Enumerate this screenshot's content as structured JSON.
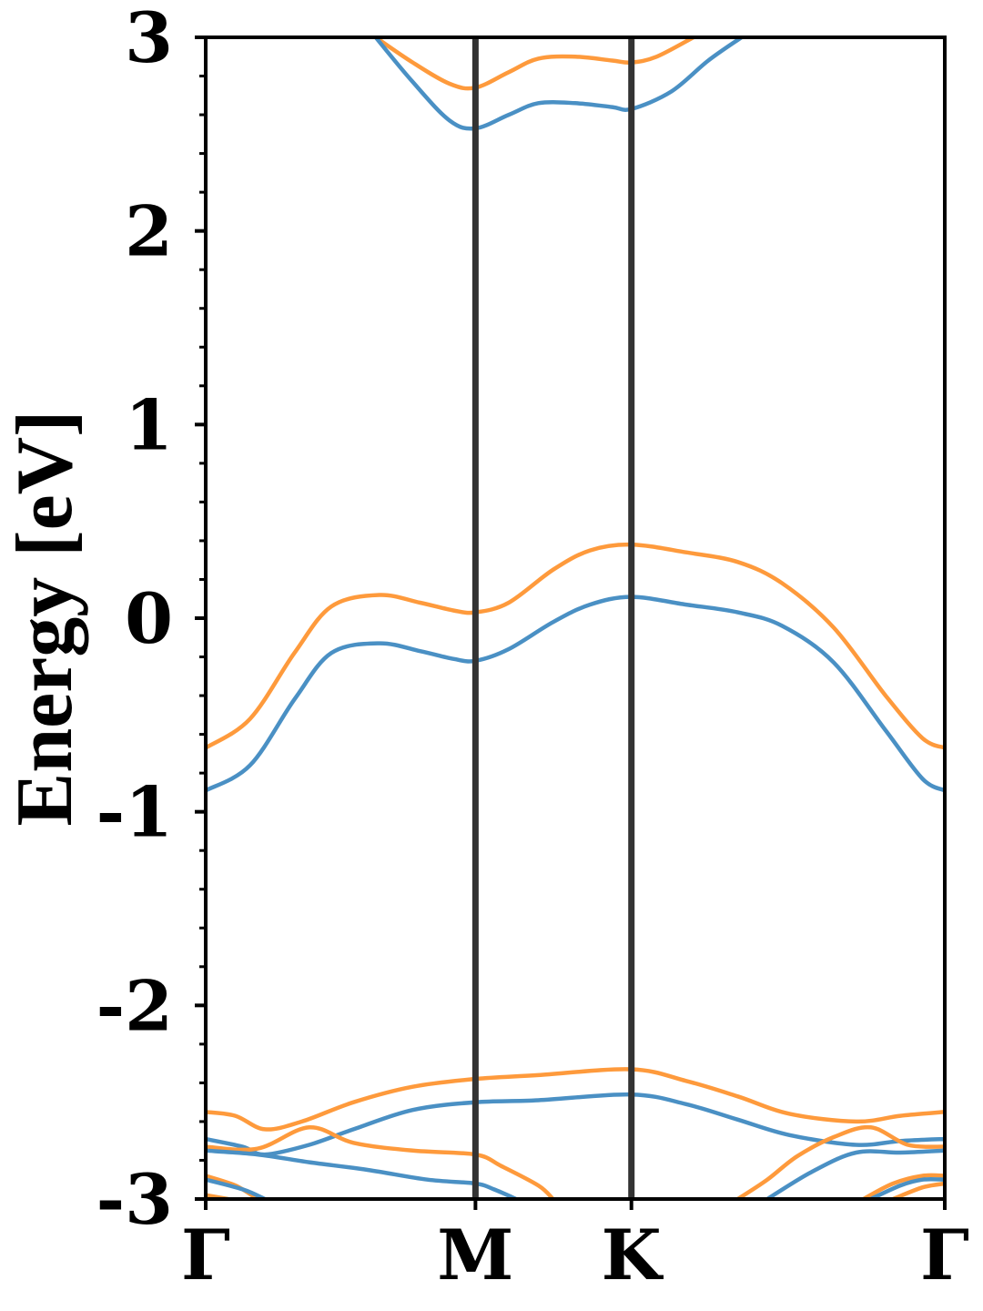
{
  "chart_data": {
    "type": "line",
    "title": "",
    "xlabel": "",
    "ylabel": "Energy [eV]",
    "ylim": [
      -3,
      3
    ],
    "xlim": [
      0,
      1
    ],
    "grid": false,
    "legend": "none",
    "x_ticks": [
      {
        "label": "Γ",
        "value": 0.0
      },
      {
        "label": "M",
        "value": 0.365
      },
      {
        "label": "K",
        "value": 0.576
      },
      {
        "label": "Γ",
        "value": 1.0
      }
    ],
    "y_ticks": [
      {
        "label": "-3",
        "value": -3
      },
      {
        "label": "-2",
        "value": -2
      },
      {
        "label": "-1",
        "value": -1
      },
      {
        "label": "0",
        "value": 0
      },
      {
        "label": "1",
        "value": 1
      },
      {
        "label": "2",
        "value": 2
      },
      {
        "label": "3",
        "value": 3
      }
    ],
    "colors": {
      "blue": "#4a90c4",
      "orange": "#fe9a3c",
      "axis": "#000000",
      "kline": "#333333"
    },
    "series": [
      {
        "color": "#fe9a3c",
        "points": [
          [
            0.0,
            -0.67
          ],
          [
            0.06,
            -0.52
          ],
          [
            0.12,
            -0.18
          ],
          [
            0.17,
            0.06
          ],
          [
            0.235,
            0.12
          ],
          [
            0.29,
            0.08
          ],
          [
            0.335,
            0.04
          ],
          [
            0.365,
            0.03
          ],
          [
            0.41,
            0.08
          ],
          [
            0.47,
            0.25
          ],
          [
            0.52,
            0.35
          ],
          [
            0.576,
            0.38
          ],
          [
            0.65,
            0.34
          ],
          [
            0.72,
            0.29
          ],
          [
            0.78,
            0.18
          ],
          [
            0.85,
            -0.05
          ],
          [
            0.92,
            -0.4
          ],
          [
            0.97,
            -0.62
          ],
          [
            1.0,
            -0.67
          ]
        ]
      },
      {
        "color": "#4a90c4",
        "points": [
          [
            0.0,
            -0.89
          ],
          [
            0.06,
            -0.76
          ],
          [
            0.12,
            -0.42
          ],
          [
            0.17,
            -0.18
          ],
          [
            0.235,
            -0.13
          ],
          [
            0.29,
            -0.17
          ],
          [
            0.335,
            -0.21
          ],
          [
            0.365,
            -0.22
          ],
          [
            0.41,
            -0.16
          ],
          [
            0.47,
            -0.02
          ],
          [
            0.52,
            0.07
          ],
          [
            0.576,
            0.11
          ],
          [
            0.65,
            0.07
          ],
          [
            0.72,
            0.03
          ],
          [
            0.78,
            -0.04
          ],
          [
            0.85,
            -0.23
          ],
          [
            0.92,
            -0.58
          ],
          [
            0.97,
            -0.83
          ],
          [
            1.0,
            -0.89
          ]
        ]
      },
      {
        "color": "#fe9a3c",
        "points": [
          [
            0.23,
            3.0
          ],
          [
            0.28,
            2.87
          ],
          [
            0.33,
            2.76
          ],
          [
            0.365,
            2.74
          ],
          [
            0.41,
            2.82
          ],
          [
            0.45,
            2.89
          ],
          [
            0.5,
            2.9
          ],
          [
            0.55,
            2.88
          ],
          [
            0.576,
            2.87
          ],
          [
            0.61,
            2.9
          ],
          [
            0.66,
            3.0
          ]
        ]
      },
      {
        "color": "#4a90c4",
        "points": [
          [
            0.23,
            3.0
          ],
          [
            0.28,
            2.77
          ],
          [
            0.33,
            2.57
          ],
          [
            0.365,
            2.53
          ],
          [
            0.41,
            2.6
          ],
          [
            0.45,
            2.66
          ],
          [
            0.5,
            2.66
          ],
          [
            0.55,
            2.64
          ],
          [
            0.576,
            2.63
          ],
          [
            0.63,
            2.72
          ],
          [
            0.68,
            2.88
          ],
          [
            0.725,
            3.0
          ]
        ]
      },
      {
        "color": "#fe9a3c",
        "points": [
          [
            0.0,
            -2.55
          ],
          [
            0.04,
            -2.57
          ],
          [
            0.08,
            -2.64
          ],
          [
            0.13,
            -2.6
          ],
          [
            0.2,
            -2.5
          ],
          [
            0.28,
            -2.42
          ],
          [
            0.365,
            -2.38
          ],
          [
            0.45,
            -2.36
          ],
          [
            0.576,
            -2.33
          ],
          [
            0.65,
            -2.39
          ],
          [
            0.72,
            -2.47
          ],
          [
            0.79,
            -2.56
          ],
          [
            0.88,
            -2.6
          ],
          [
            0.94,
            -2.57
          ],
          [
            1.0,
            -2.55
          ]
        ]
      },
      {
        "color": "#4a90c4",
        "points": [
          [
            0.0,
            -2.69
          ],
          [
            0.05,
            -2.73
          ],
          [
            0.08,
            -2.77
          ],
          [
            0.14,
            -2.72
          ],
          [
            0.2,
            -2.64
          ],
          [
            0.28,
            -2.54
          ],
          [
            0.365,
            -2.5
          ],
          [
            0.45,
            -2.49
          ],
          [
            0.576,
            -2.46
          ],
          [
            0.65,
            -2.51
          ],
          [
            0.72,
            -2.59
          ],
          [
            0.79,
            -2.67
          ],
          [
            0.88,
            -2.72
          ],
          [
            0.94,
            -2.7
          ],
          [
            1.0,
            -2.69
          ]
        ]
      },
      {
        "color": "#fe9a3c",
        "points": [
          [
            0.0,
            -2.73
          ],
          [
            0.07,
            -2.74
          ],
          [
            0.14,
            -2.63
          ],
          [
            0.2,
            -2.71
          ],
          [
            0.28,
            -2.75
          ],
          [
            0.365,
            -2.77
          ],
          [
            0.4,
            -2.83
          ],
          [
            0.45,
            -2.93
          ],
          [
            0.47,
            -3.0
          ]
        ]
      },
      {
        "color": "#4a90c4",
        "points": [
          [
            0.0,
            -2.75
          ],
          [
            0.07,
            -2.77
          ],
          [
            0.14,
            -2.81
          ],
          [
            0.22,
            -2.85
          ],
          [
            0.3,
            -2.9
          ],
          [
            0.365,
            -2.92
          ],
          [
            0.39,
            -2.95
          ],
          [
            0.42,
            -3.0
          ]
        ]
      },
      {
        "color": "#fe9a3c",
        "points": [
          [
            0.0,
            -2.88
          ],
          [
            0.04,
            -2.93
          ],
          [
            0.07,
            -3.0
          ]
        ]
      },
      {
        "color": "#4a90c4",
        "points": [
          [
            0.0,
            -2.9
          ],
          [
            0.05,
            -2.95
          ],
          [
            0.08,
            -3.0
          ]
        ]
      },
      {
        "color": "#fe9a3c",
        "points": [
          [
            0.0,
            -2.98
          ],
          [
            0.03,
            -3.0
          ]
        ]
      },
      {
        "color": "#fe9a3c",
        "points": [
          [
            0.72,
            -3.0
          ],
          [
            0.76,
            -2.9
          ],
          [
            0.8,
            -2.78
          ],
          [
            0.85,
            -2.68
          ],
          [
            0.9,
            -2.63
          ],
          [
            0.95,
            -2.72
          ],
          [
            1.0,
            -2.73
          ]
        ]
      },
      {
        "color": "#4a90c4",
        "points": [
          [
            0.76,
            -3.0
          ],
          [
            0.82,
            -2.86
          ],
          [
            0.88,
            -2.76
          ],
          [
            0.94,
            -2.76
          ],
          [
            1.0,
            -2.75
          ]
        ]
      },
      {
        "color": "#fe9a3c",
        "points": [
          [
            0.89,
            -3.0
          ],
          [
            0.93,
            -2.92
          ],
          [
            0.97,
            -2.88
          ],
          [
            1.0,
            -2.88
          ]
        ]
      },
      {
        "color": "#4a90c4",
        "points": [
          [
            0.9,
            -3.0
          ],
          [
            0.94,
            -2.93
          ],
          [
            0.97,
            -2.9
          ],
          [
            1.0,
            -2.9
          ]
        ]
      },
      {
        "color": "#fe9a3c",
        "points": [
          [
            0.93,
            -3.0
          ],
          [
            0.97,
            -2.94
          ],
          [
            1.0,
            -2.92
          ]
        ]
      }
    ]
  }
}
